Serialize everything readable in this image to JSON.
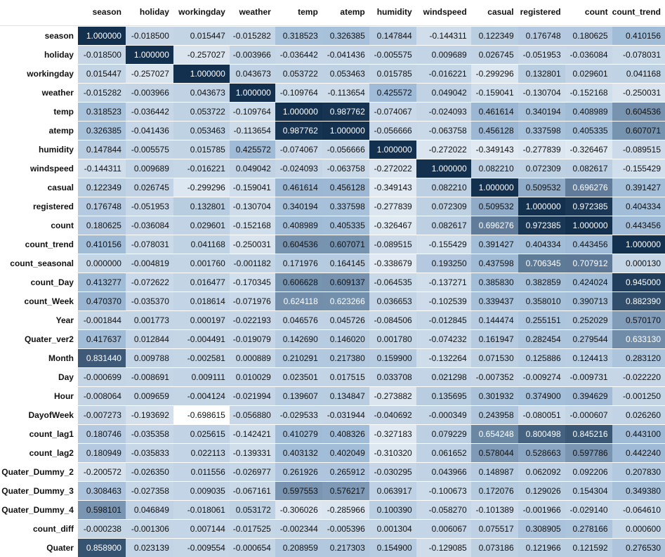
{
  "table": {
    "columns": [
      "season",
      "holiday",
      "workingday",
      "weather",
      "temp",
      "atemp",
      "humidity",
      "windspeed",
      "casual",
      "registered",
      "count",
      "count_trend"
    ],
    "color_low": "#ffffff",
    "color_mid": "#9ebad6",
    "color_high": "#13304f",
    "rows": [
      {
        "label": "season",
        "values": [
          1.0,
          -0.0185,
          0.015447,
          -0.015282,
          0.318523,
          0.326385,
          0.147844,
          -0.144311,
          0.122349,
          0.176748,
          0.180625,
          0.410156
        ]
      },
      {
        "label": "holiday",
        "values": [
          -0.0185,
          1.0,
          -0.257027,
          -0.003966,
          -0.036442,
          -0.041436,
          -0.005575,
          0.009689,
          0.026745,
          -0.051953,
          -0.036084,
          -0.078031
        ]
      },
      {
        "label": "workingday",
        "values": [
          0.015447,
          -0.257027,
          1.0,
          0.043673,
          0.053722,
          0.053463,
          0.015785,
          -0.016221,
          -0.299296,
          0.132801,
          0.029601,
          0.041168
        ]
      },
      {
        "label": "weather",
        "values": [
          -0.015282,
          -0.003966,
          0.043673,
          1.0,
          -0.109764,
          -0.113654,
          0.425572,
          0.049042,
          -0.159041,
          -0.130704,
          -0.152168,
          -0.250031
        ]
      },
      {
        "label": "temp",
        "values": [
          0.318523,
          -0.036442,
          0.053722,
          -0.109764,
          1.0,
          0.987762,
          -0.074067,
          -0.024093,
          0.461614,
          0.340194,
          0.408989,
          0.604536
        ]
      },
      {
        "label": "atemp",
        "values": [
          0.326385,
          -0.041436,
          0.053463,
          -0.113654,
          0.987762,
          1.0,
          -0.056666,
          -0.063758,
          0.456128,
          0.337598,
          0.405335,
          0.607071
        ]
      },
      {
        "label": "humidity",
        "values": [
          0.147844,
          -0.005575,
          0.015785,
          0.425572,
          -0.074067,
          -0.056666,
          1.0,
          -0.272022,
          -0.349143,
          -0.277839,
          -0.326467,
          -0.089515
        ]
      },
      {
        "label": "windspeed",
        "values": [
          -0.144311,
          0.009689,
          -0.016221,
          0.049042,
          -0.024093,
          -0.063758,
          -0.272022,
          1.0,
          0.08221,
          0.072309,
          0.082617,
          -0.155429
        ]
      },
      {
        "label": "casual",
        "values": [
          0.122349,
          0.026745,
          -0.299296,
          -0.159041,
          0.461614,
          0.456128,
          -0.349143,
          0.08221,
          1.0,
          0.509532,
          0.696276,
          0.391427
        ]
      },
      {
        "label": "registered",
        "values": [
          0.176748,
          -0.051953,
          0.132801,
          -0.130704,
          0.340194,
          0.337598,
          -0.277839,
          0.072309,
          0.509532,
          1.0,
          0.972385,
          0.404334
        ]
      },
      {
        "label": "count",
        "values": [
          0.180625,
          -0.036084,
          0.029601,
          -0.152168,
          0.408989,
          0.405335,
          -0.326467,
          0.082617,
          0.696276,
          0.972385,
          1.0,
          0.443456
        ]
      },
      {
        "label": "count_trend",
        "values": [
          0.410156,
          -0.078031,
          0.041168,
          -0.250031,
          0.604536,
          0.607071,
          -0.089515,
          -0.155429,
          0.391427,
          0.404334,
          0.443456,
          1.0
        ]
      },
      {
        "label": "count_seasonal",
        "values": [
          0.0,
          -0.004819,
          0.00176,
          -0.001182,
          0.171976,
          0.164145,
          -0.338679,
          0.19325,
          0.437598,
          0.706345,
          0.707912,
          0.00013
        ]
      },
      {
        "label": "count_Day",
        "values": [
          0.413277,
          -0.072622,
          0.016477,
          -0.170345,
          0.606628,
          0.609137,
          -0.064535,
          -0.137271,
          0.38583,
          0.382859,
          0.424024,
          0.945
        ]
      },
      {
        "label": "count_Week",
        "values": [
          0.47037,
          -0.03537,
          0.018614,
          -0.071976,
          0.624118,
          0.623266,
          0.036653,
          -0.102539,
          0.339437,
          0.35801,
          0.390713,
          0.88239
        ]
      },
      {
        "label": "Year",
        "values": [
          -0.001844,
          0.001773,
          0.000197,
          -0.022193,
          0.046576,
          0.045726,
          -0.084506,
          -0.012845,
          0.144474,
          0.255151,
          0.252029,
          0.57017
        ]
      },
      {
        "label": "Quater_ver2",
        "values": [
          0.417637,
          0.012844,
          -0.004491,
          -0.019079,
          0.14269,
          0.14602,
          0.00178,
          -0.074232,
          0.161947,
          0.282454,
          0.279544,
          0.63313
        ]
      },
      {
        "label": "Month",
        "values": [
          0.83144,
          0.009788,
          -0.002581,
          0.000889,
          0.210291,
          0.21738,
          0.1599,
          -0.132264,
          0.07153,
          0.125886,
          0.124413,
          0.28312
        ]
      },
      {
        "label": "Day",
        "values": [
          -0.000699,
          -0.008691,
          0.009111,
          0.010029,
          0.023501,
          0.017515,
          0.033708,
          0.021298,
          -0.007352,
          -0.009274,
          -0.009731,
          -0.02222
        ]
      },
      {
        "label": "Hour",
        "values": [
          -0.008064,
          0.009659,
          -0.004124,
          -0.021994,
          0.139607,
          0.134847,
          -0.273882,
          0.135695,
          0.301932,
          0.3749,
          0.394629,
          -0.00125
        ]
      },
      {
        "label": "DayofWeek",
        "values": [
          -0.007273,
          -0.193692,
          -0.698615,
          -0.05688,
          -0.029533,
          -0.031944,
          -0.040692,
          -0.000349,
          0.243958,
          -0.080051,
          -0.000607,
          0.02626
        ]
      },
      {
        "label": "count_lag1",
        "values": [
          0.180746,
          -0.035358,
          0.025615,
          -0.142421,
          0.410279,
          0.408326,
          -0.327183,
          0.079229,
          0.654248,
          0.800498,
          0.845216,
          0.4431
        ]
      },
      {
        "label": "count_lag2",
        "values": [
          0.180949,
          -0.035833,
          0.022113,
          -0.139331,
          0.403132,
          0.402049,
          -0.31032,
          0.061652,
          0.578044,
          0.528663,
          0.597786,
          0.44224
        ]
      },
      {
        "label": "Quater_Dummy_2",
        "values": [
          -0.200572,
          -0.02635,
          0.011556,
          -0.026977,
          0.261926,
          0.265912,
          -0.030295,
          0.043966,
          0.148987,
          0.062092,
          0.092206,
          0.20783
        ]
      },
      {
        "label": "Quater_Dummy_3",
        "values": [
          0.308463,
          -0.027358,
          0.009035,
          -0.067161,
          0.597553,
          0.576217,
          0.063917,
          -0.100673,
          0.172076,
          0.129026,
          0.154304,
          0.34938
        ]
      },
      {
        "label": "Quater_Dummy_4",
        "values": [
          0.598101,
          0.046849,
          -0.018061,
          0.053172,
          -0.306026,
          -0.285966,
          0.10039,
          -0.05827,
          -0.101389,
          -0.001966,
          -0.02914,
          -0.06461
        ]
      },
      {
        "label": "count_diff",
        "values": [
          -0.000238,
          -0.001306,
          0.007144,
          -0.017525,
          -0.002344,
          -0.005396,
          0.001304,
          0.006067,
          0.075517,
          0.308905,
          0.278166,
          0.0006
        ]
      },
      {
        "label": "Quater",
        "values": [
          0.8589,
          0.023139,
          -0.009554,
          -0.000654,
          0.208959,
          0.217303,
          0.1549,
          -0.129085,
          0.073186,
          0.121966,
          0.121592,
          0.27653
        ]
      }
    ]
  }
}
